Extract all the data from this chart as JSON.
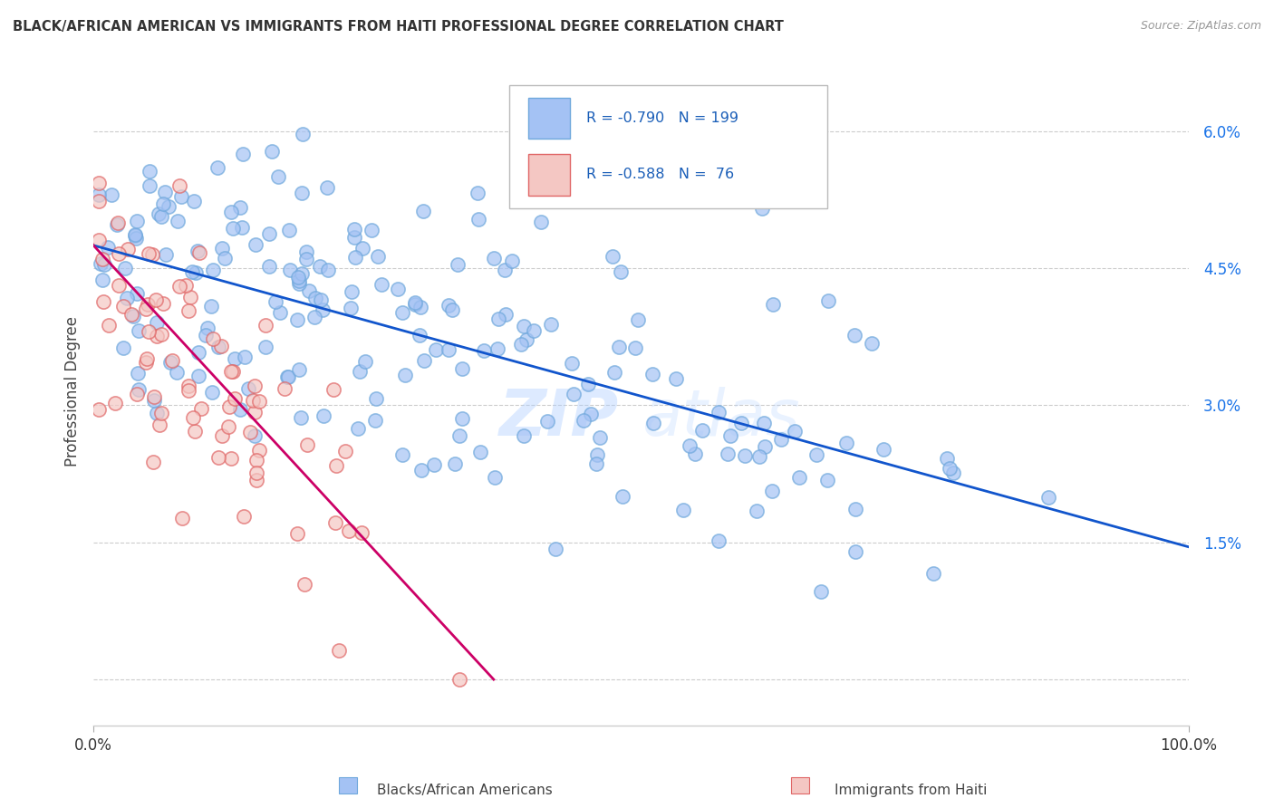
{
  "title": "BLACK/AFRICAN AMERICAN VS IMMIGRANTS FROM HAITI PROFESSIONAL DEGREE CORRELATION CHART",
  "source": "Source: ZipAtlas.com",
  "ylabel": "Professional Degree",
  "ytick_labels": [
    "",
    "1.5%",
    "3.0%",
    "4.5%",
    "6.0%"
  ],
  "ytick_values": [
    0.0,
    0.015,
    0.03,
    0.045,
    0.06
  ],
  "xlim": [
    0.0,
    1.0
  ],
  "ylim": [
    -0.005,
    0.068
  ],
  "blue_R": "-0.790",
  "blue_N": "199",
  "pink_R": "-0.588",
  "pink_N": "76",
  "blue_marker_color": "#a4c2f4",
  "blue_edge_color": "#6fa8dc",
  "pink_marker_color": "#f4c7c3",
  "pink_edge_color": "#e06666",
  "blue_line_color": "#1155cc",
  "pink_line_color": "#cc0066",
  "watermark_text": "ZIP",
  "watermark_text2": "atlas",
  "legend_label_blue": "Blacks/African Americans",
  "legend_label_pink": "Immigrants from Haiti",
  "blue_slope": -0.033,
  "blue_intercept": 0.0475,
  "pink_slope": -0.13,
  "pink_intercept": 0.0475,
  "grid_color": "#cccccc",
  "tick_color": "#1a73e8",
  "title_color": "#333333",
  "source_color": "#999999"
}
